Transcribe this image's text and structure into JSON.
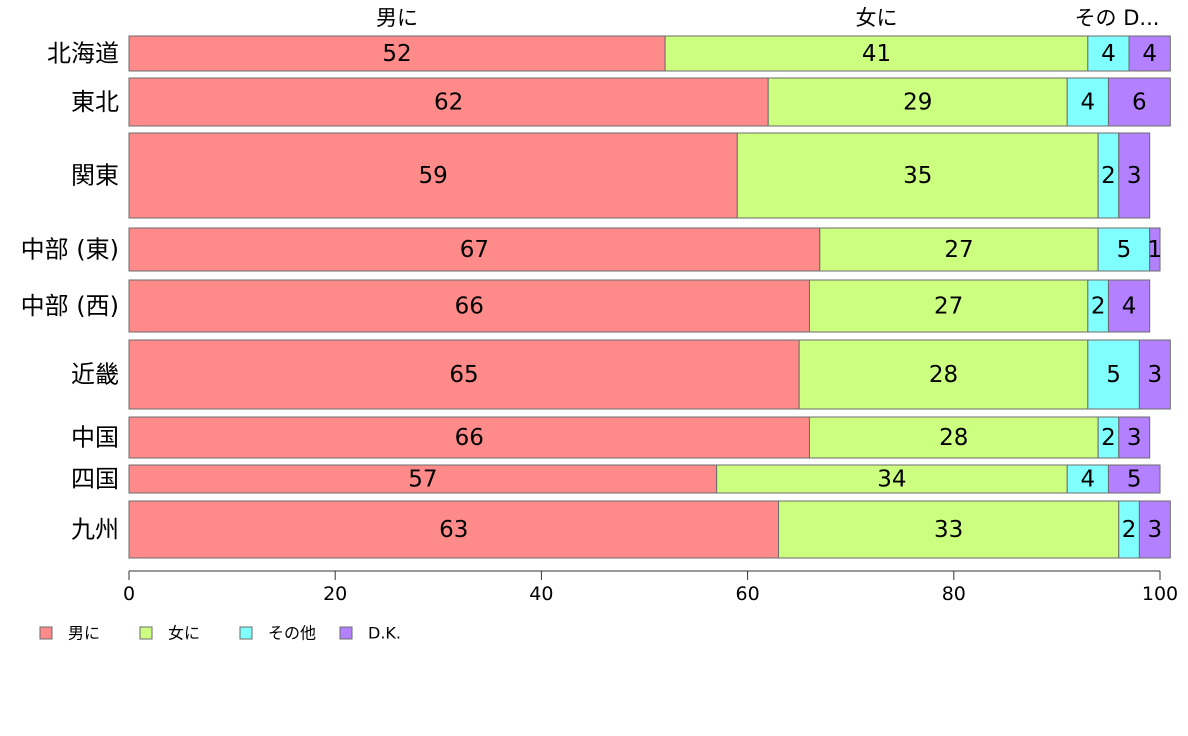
{
  "chart_data": {
    "type": "bar",
    "orientation": "horizontal",
    "stacked": true,
    "categories": [
      "北海道",
      "東北",
      "関東",
      "中部 (東)",
      "中部 (西)",
      "近畿",
      "中国",
      "四国",
      "九州"
    ],
    "series": [
      {
        "name": "男に",
        "color": "#ff8a8a",
        "values": [
          52,
          62,
          59,
          67,
          66,
          65,
          66,
          57,
          63
        ]
      },
      {
        "name": "女に",
        "color": "#ccff80",
        "values": [
          41,
          29,
          35,
          27,
          27,
          28,
          28,
          34,
          33
        ]
      },
      {
        "name": "その他",
        "color": "#80ffff",
        "values": [
          4,
          4,
          2,
          5,
          2,
          5,
          2,
          4,
          2
        ]
      },
      {
        "name": "D.K.",
        "color": "#b380ff",
        "values": [
          4,
          6,
          3,
          1,
          4,
          3,
          3,
          5,
          3
        ]
      }
    ],
    "top_labels": [
      "男に",
      "女に",
      "その D..."
    ],
    "xlim": [
      0,
      100
    ],
    "x_ticks": [
      0,
      20,
      40,
      60,
      80,
      100
    ],
    "legend_position": "bottom-left",
    "grid": false
  }
}
